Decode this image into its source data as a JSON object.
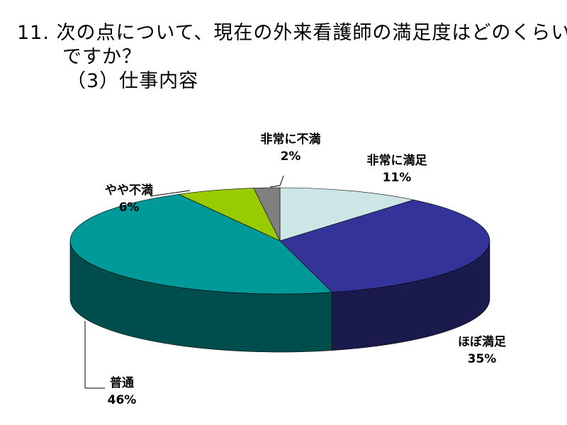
{
  "title": {
    "line1": "11. 次の点について、現在の外来看護師の満足度はどのくらい",
    "line2": "ですか？",
    "line3": "（3）仕事内容"
  },
  "chart_data": {
    "type": "pie",
    "style": "3d",
    "slices": [
      {
        "label": "非常に満足",
        "value": 11,
        "value_label": "11%",
        "color": "#cce5e5",
        "side_color": "#8fb0b0"
      },
      {
        "label": "ほぼ満足",
        "value": 35,
        "value_label": "35%",
        "color": "#333399",
        "side_color": "#1a1a4d"
      },
      {
        "label": "普通",
        "value": 46,
        "value_label": "46%",
        "color": "#009999",
        "side_color": "#004d4d"
      },
      {
        "label": "やや不満",
        "value": 6,
        "value_label": "6%",
        "color": "#99cc00",
        "side_color": "#5c7a00"
      },
      {
        "label": "非常に不満",
        "value": 2,
        "value_label": "2%",
        "color": "#808080",
        "side_color": "#4d4d4d"
      }
    ]
  }
}
